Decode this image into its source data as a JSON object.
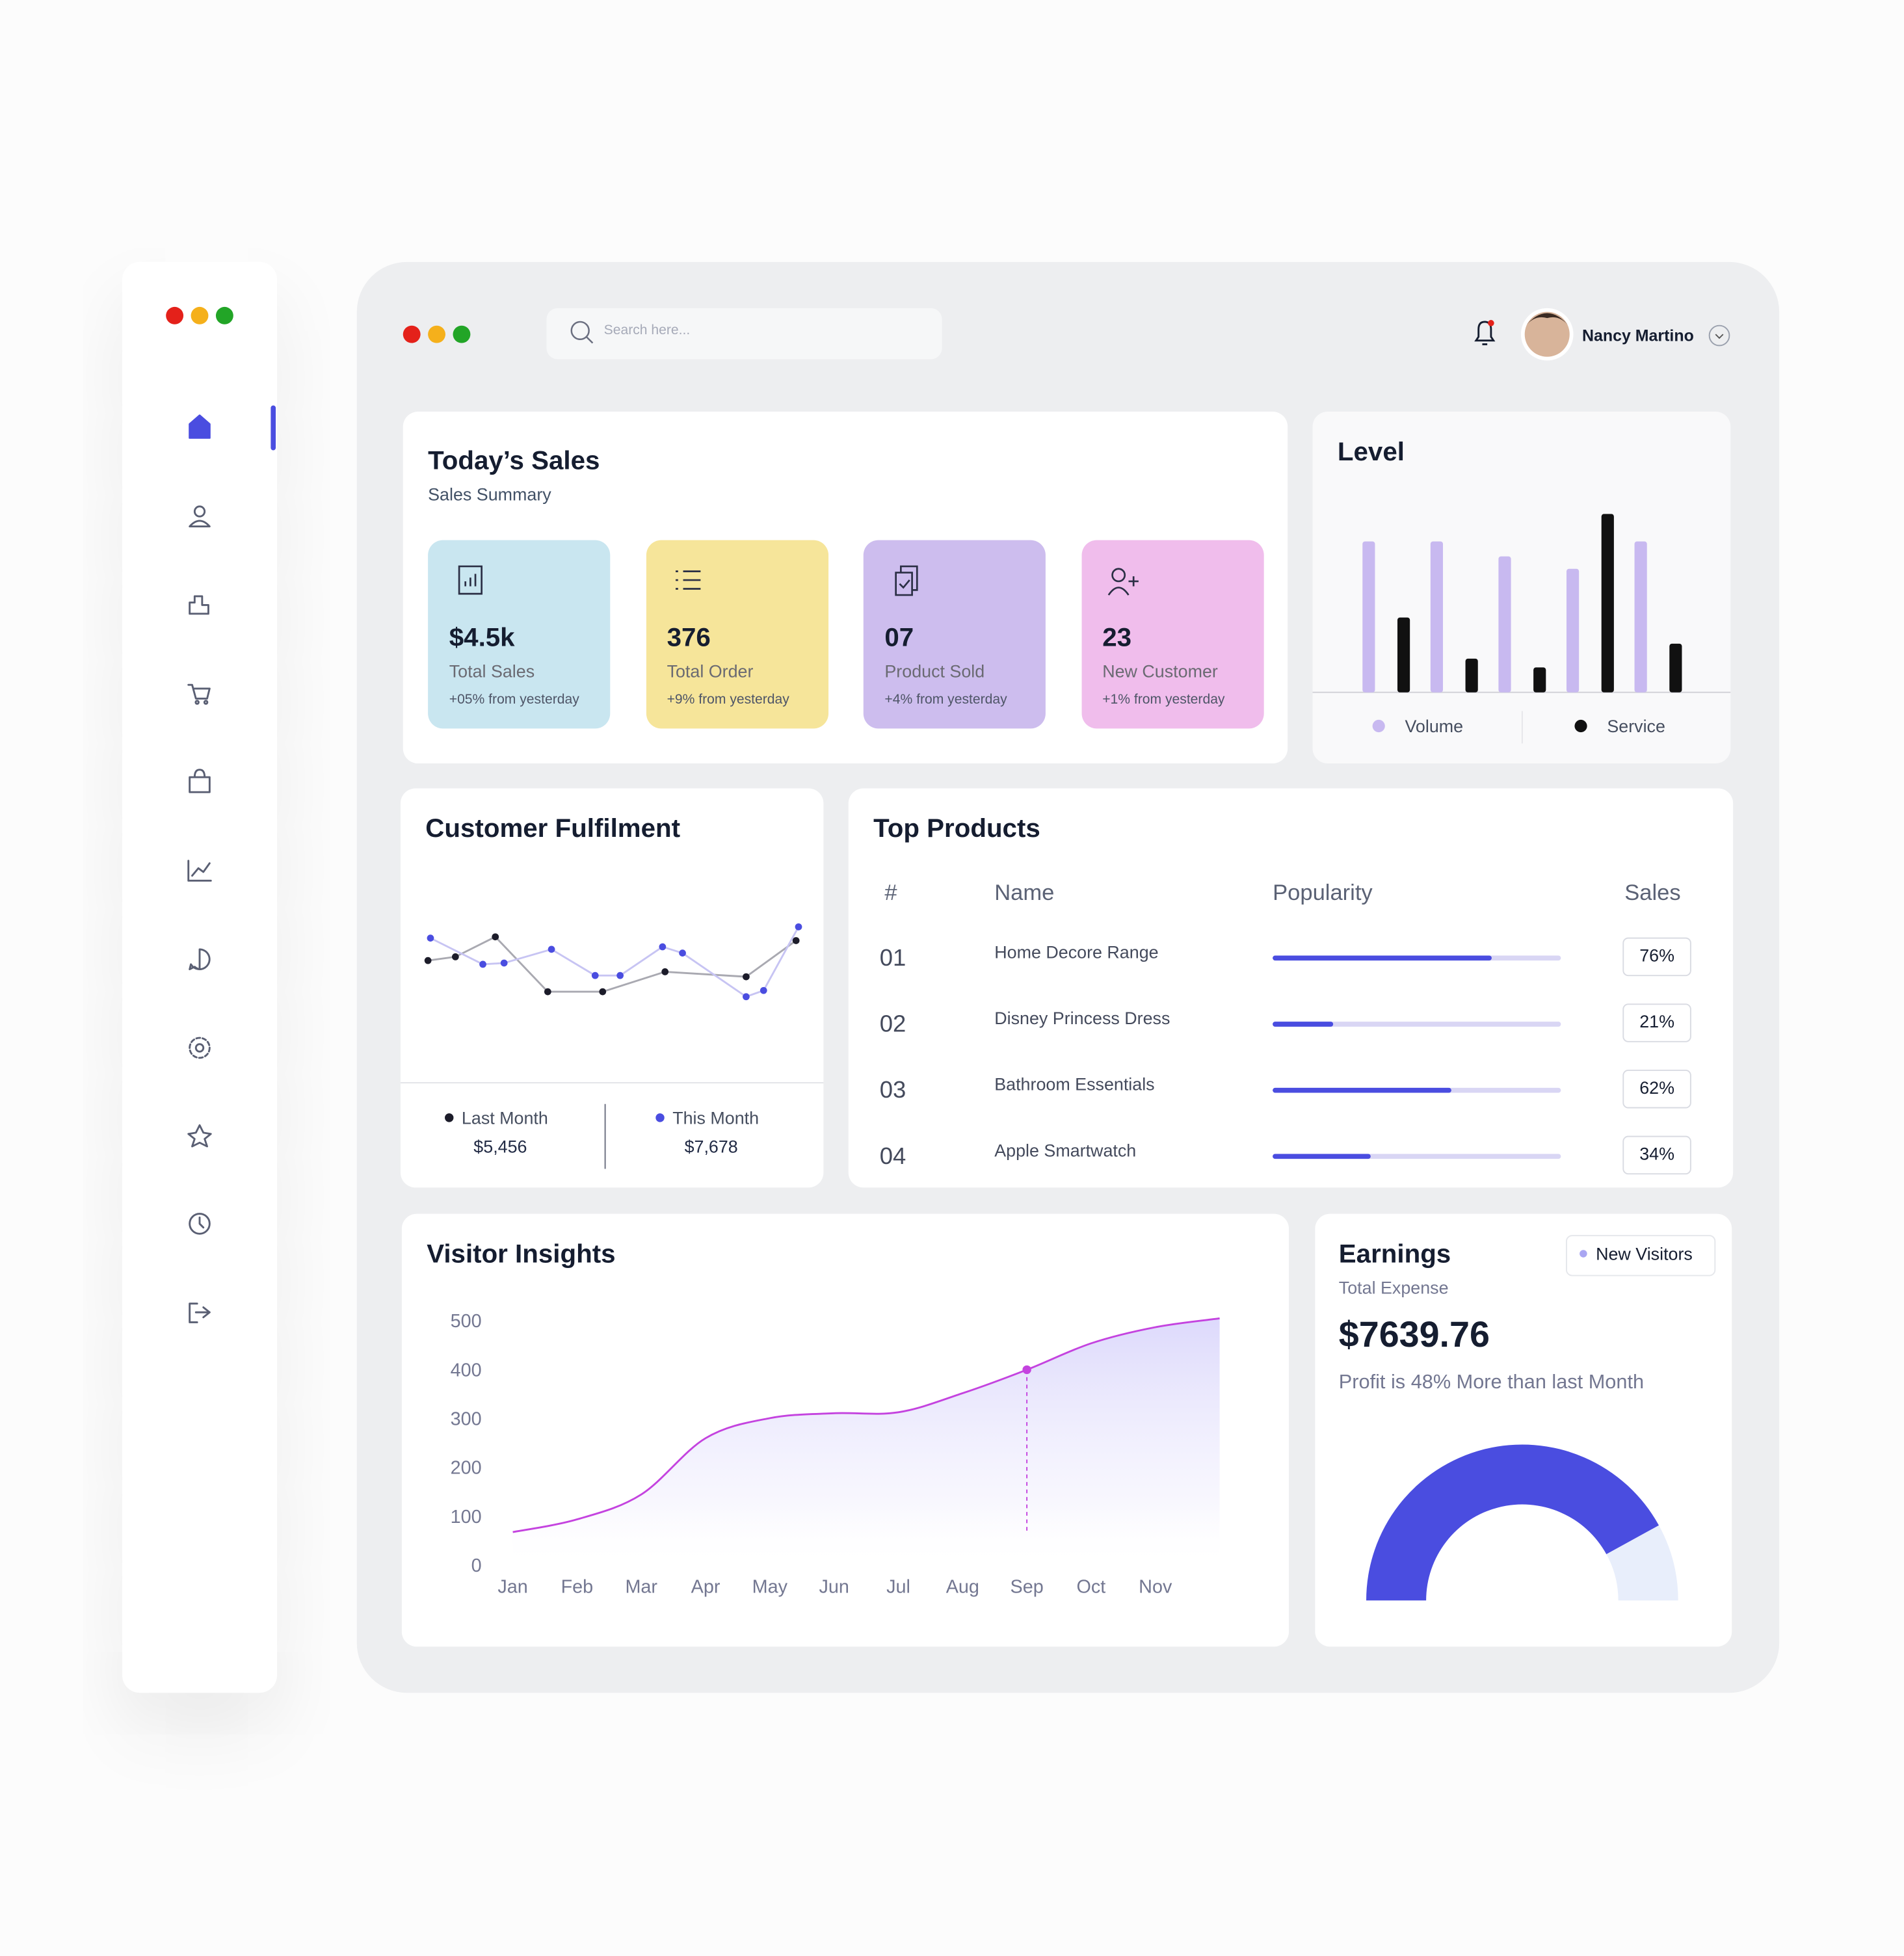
{
  "window": {
    "search_placeholder": "Search here...",
    "user_name": "Nancy Martino"
  },
  "todays_sales": {
    "title": "Today’s Sales",
    "subtitle": "Sales Summary",
    "cards": [
      {
        "value": "$4.5k",
        "label": "Total Sales",
        "change": "+05% from yesterday",
        "color": "#c9e6f0"
      },
      {
        "value": "376",
        "label": "Total Order",
        "change": "+9% from yesterday",
        "color": "#f6e59a"
      },
      {
        "value": "07",
        "label": "Product Sold",
        "change": "+4% from yesterday",
        "color": "#cdbdee"
      },
      {
        "value": "23",
        "label": "New Customer",
        "change": "+1% from yesterday",
        "color": "#f0bdec"
      }
    ]
  },
  "level": {
    "type": "bar",
    "title": "Level",
    "series": [
      {
        "name": "Volume",
        "color": "#c8b9f0",
        "values": [
          121,
          121,
          109,
          99,
          121
        ]
      },
      {
        "name": "Service",
        "color": "#111111",
        "values": [
          60,
          27,
          20,
          143,
          39
        ]
      }
    ]
  },
  "customer_fulfilment": {
    "type": "line",
    "title": "Customer Fulfilment",
    "series": [
      {
        "name": "Last Month",
        "total": "$5,456",
        "color": "#1c1c2a",
        "line_color": "#a9a9b1",
        "x": [
          3,
          25,
          57,
          99,
          143,
          193,
          258,
          298
        ],
        "values": [
          60,
          63,
          79,
          35,
          35,
          51,
          47,
          76
        ]
      },
      {
        "name": "This Month",
        "total": "$7,678",
        "color": "#4a4de0",
        "line_color": "#c7c4f3",
        "x": [
          5,
          47,
          64,
          102,
          137,
          157,
          191,
          207,
          258,
          272,
          300
        ],
        "values": [
          78,
          57,
          58,
          69,
          48,
          48,
          71,
          66,
          31,
          36,
          87
        ]
      }
    ]
  },
  "top_products": {
    "title": "Top Products",
    "columns": [
      "#",
      "Name",
      "Popularity",
      "Sales"
    ],
    "xlim": [
      0,
      100
    ],
    "bar_color": "#4a4de0",
    "track_color": "#d9d6f4",
    "rows": [
      {
        "rank": "01",
        "name": "Home Decore Range",
        "popularity": 76,
        "sales": "76%"
      },
      {
        "rank": "02",
        "name": "Disney Princess Dress",
        "popularity": 21,
        "sales": "21%"
      },
      {
        "rank": "03",
        "name": "Bathroom Essentials",
        "popularity": 62,
        "sales": "62%"
      },
      {
        "rank": "04",
        "name": "Apple Smartwatch",
        "popularity": 34,
        "sales": "34%"
      }
    ]
  },
  "visitor_insights": {
    "type": "line",
    "title": "Visitor Insights",
    "categories": [
      "Jan",
      "Feb",
      "Mar",
      "Apr",
      "May",
      "Jun",
      "Jul",
      "Aug",
      "Sep",
      "Oct",
      "Nov",
      null
    ],
    "values": [
      71,
      97,
      148,
      263,
      304,
      314,
      316,
      355,
      403,
      457,
      490,
      508
    ],
    "ylim": [
      0,
      500
    ],
    "yticks": [
      0,
      100,
      200,
      300,
      400,
      500
    ],
    "color": "#c443df",
    "highlight_index": 8
  },
  "earnings": {
    "title": "Earnings",
    "subtitle": "Total Expense",
    "amount": "$7639.76",
    "note": "Profit is 48% More than last Month",
    "legend": "New Visitors",
    "legend_color": "#a9a6f2",
    "type": "pie",
    "values": [
      84,
      16
    ],
    "colors": [
      "#4a4de0",
      "#e8eefb"
    ]
  }
}
